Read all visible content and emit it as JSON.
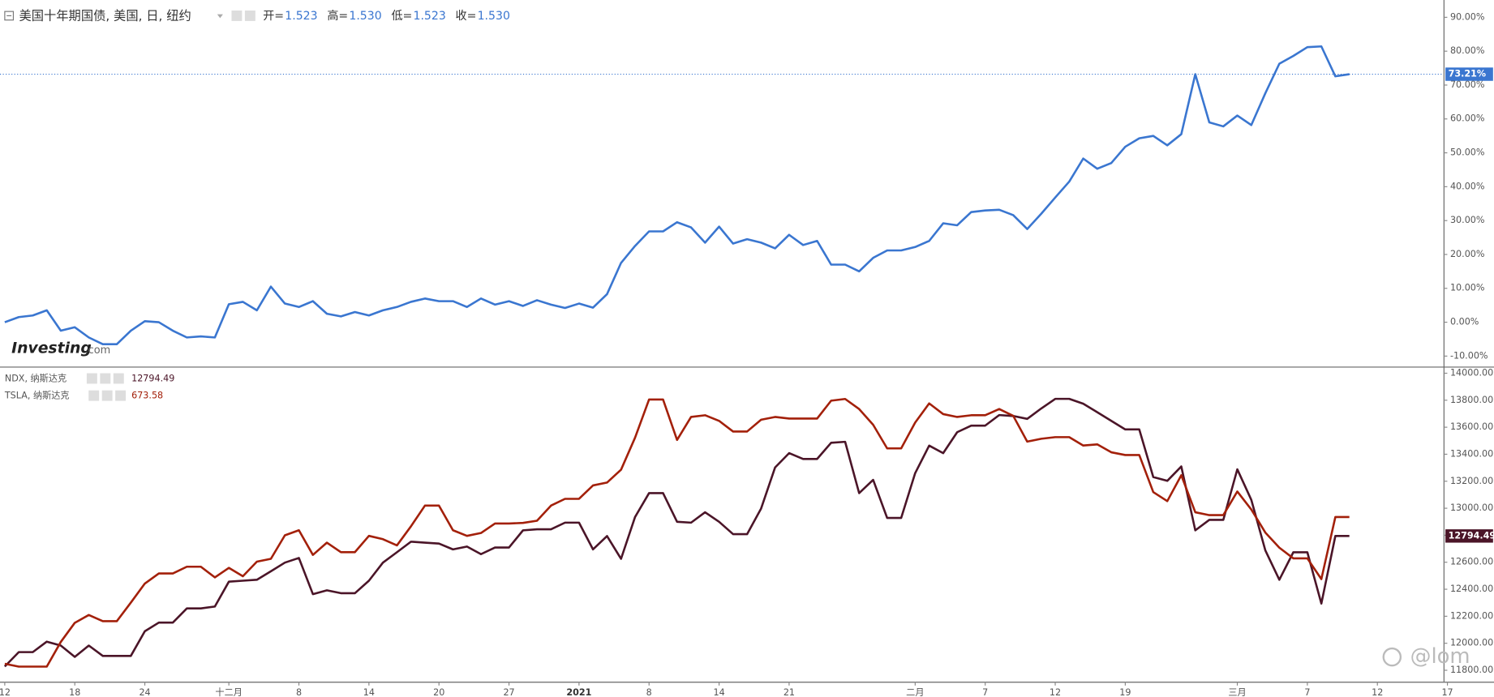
{
  "header": {
    "title": "美国十年期国债, 美国, 日, 纽约",
    "ohlc": [
      {
        "label": "开=",
        "value": "1.523"
      },
      {
        "label": "高=",
        "value": "1.530"
      },
      {
        "label": "低=",
        "value": "1.523"
      },
      {
        "label": "收=",
        "value": "1.530"
      }
    ]
  },
  "watermarks": [
    "Investing",
    ".com",
    "@lom"
  ],
  "chart_data": [
    {
      "type": "line",
      "color": "#3a76d0",
      "values": [
        0,
        1.5,
        2,
        3.5,
        -2.5,
        -1.5,
        -4.5,
        -6.5,
        -6.5,
        -2.5,
        0.3,
        0,
        -2.5,
        -4.5,
        -4.2,
        -4.5,
        5.3,
        6,
        3.5,
        10.5,
        5.5,
        4.5,
        6.2,
        2.5,
        1.7,
        3,
        2,
        3.5,
        4.5,
        6,
        7,
        6.2,
        6.2,
        4.5,
        7,
        5.2,
        6.2,
        4.8,
        6.5,
        5.2,
        4.2,
        5.5,
        4.3,
        8.3,
        17.5,
        22.5,
        26.8,
        26.8,
        29.5,
        28,
        23.5,
        28.2,
        23.2,
        24.5,
        23.5,
        21.8,
        25.8,
        22.8,
        24,
        17,
        17,
        15,
        19,
        21.2,
        21.2,
        22.2,
        24,
        29.2,
        28.6,
        32.5,
        33,
        33.2,
        31.6,
        27.5,
        32,
        36.8,
        41.5,
        48.3,
        45.3,
        47,
        51.8,
        54.3,
        55,
        52.2,
        55.5,
        73.2,
        59,
        57.8,
        61,
        58.2,
        67.6,
        76.3,
        78.6,
        81.2,
        81.4,
        72.6,
        73.21,
        null,
        null,
        null,
        null,
        null,
        null,
        null
      ],
      "current_label": "73.21%",
      "ylim": [
        -13.1,
        95.1
      ],
      "yticks": [
        {
          "value": 90,
          "label": "90.00%"
        },
        {
          "value": 80,
          "label": "80.00%"
        },
        {
          "value": 70,
          "label": "70.00%"
        },
        {
          "value": 60,
          "label": "60.00%"
        },
        {
          "value": 50,
          "label": "50.00%"
        },
        {
          "value": 40,
          "label": "40.00%"
        },
        {
          "value": 30,
          "label": "30.00%"
        },
        {
          "value": 20,
          "label": "20.00%"
        },
        {
          "value": 10,
          "label": "10.00%"
        },
        {
          "value": 0,
          "label": "0.00%"
        },
        {
          "value": -10,
          "label": "-10.00%"
        }
      ]
    },
    {
      "type": "line",
      "categories": [
        "12",
        null,
        null,
        null,
        null,
        "18",
        null,
        null,
        null,
        null,
        "24",
        null,
        null,
        null,
        null,
        null,
        "十二月",
        null,
        null,
        null,
        null,
        "8",
        null,
        null,
        null,
        null,
        "14",
        null,
        null,
        null,
        null,
        "20",
        null,
        null,
        null,
        null,
        "27",
        null,
        null,
        null,
        null,
        "2021",
        null,
        null,
        null,
        null,
        "8",
        null,
        null,
        null,
        null,
        "14",
        null,
        null,
        null,
        null,
        "21",
        null,
        null,
        null,
        null,
        null,
        null,
        null,
        null,
        "二月",
        null,
        null,
        null,
        null,
        "7",
        null,
        null,
        null,
        null,
        "12",
        null,
        null,
        null,
        null,
        "19",
        null,
        null,
        null,
        null,
        null,
        null,
        null,
        "三月",
        null,
        null,
        null,
        null,
        "7",
        null,
        null,
        null,
        null,
        "12",
        null,
        null,
        null,
        null,
        "17"
      ],
      "series": [
        {
          "name": "NDX, 纳斯达克",
          "color": "#4b1528",
          "values": [
            11828,
            11934,
            11934,
            12012,
            11983,
            11899,
            11983,
            11906,
            11906,
            11906,
            12089,
            12153,
            12153,
            12258,
            12258,
            12272,
            12456,
            12463,
            12470,
            12533,
            12597,
            12632,
            12364,
            12392,
            12371,
            12371,
            12463,
            12597,
            12674,
            12752,
            12745,
            12738,
            12695,
            12716,
            12660,
            12709,
            12709,
            12836,
            12844,
            12844,
            12893,
            12893,
            12695,
            12794,
            12625,
            12935,
            13112,
            13112,
            12900,
            12893,
            12970,
            12900,
            12808,
            12808,
            12998,
            13302,
            13408,
            13365,
            13365,
            13485,
            13492,
            13112,
            13210,
            12928,
            12928,
            13260,
            13464,
            13408,
            13563,
            13612,
            13612,
            13690,
            13683,
            13662,
            13739,
            13810,
            13810,
            13774,
            13711,
            13647,
            13584,
            13584,
            13231,
            13203,
            13309,
            12836,
            12914,
            12914,
            13288,
            13062,
            12688,
            12470,
            12674,
            12674,
            12294,
            12794.49,
            12794.49,
            null,
            null,
            null,
            null,
            null,
            null,
            null
          ]
        },
        {
          "name": "TSLA, 纳斯达克",
          "color": "#a3200a",
          "axis": "y2",
          "values": [
            412,
            407,
            407,
            407,
            451,
            485,
            499,
            488,
            488,
            521,
            555,
            573,
            573,
            585,
            585,
            566,
            583,
            568,
            594,
            599,
            641,
            650,
            606,
            628,
            611,
            611,
            640,
            634,
            623,
            657,
            694,
            694,
            650,
            640,
            645,
            662,
            662,
            663,
            667,
            694,
            706,
            706,
            730,
            735,
            758,
            815,
            883,
            883,
            811,
            852,
            855,
            845,
            826,
            826,
            847,
            852,
            849,
            849,
            849,
            881,
            884,
            866,
            838,
            796,
            796,
            842,
            876,
            857,
            852,
            855,
            855,
            866,
            854,
            808,
            813,
            816,
            816,
            801,
            803,
            789,
            784,
            784,
            718,
            702,
            748,
            682,
            677,
            677,
            719,
            687,
            646,
            619,
            600,
            600,
            563,
            673.58,
            673.58,
            null,
            null,
            null,
            null,
            null,
            null,
            null
          ]
        }
      ],
      "ylim": [
        11715,
        14042
      ],
      "y2lim": [
        380,
        940
      ],
      "yticks": [
        {
          "value": 14000,
          "label": "14000.00"
        },
        {
          "value": 13800,
          "label": "13800.00"
        },
        {
          "value": 13600,
          "label": "13600.00"
        },
        {
          "value": 13400,
          "label": "13400.00"
        },
        {
          "value": 13200,
          "label": "13200.00"
        },
        {
          "value": 13000,
          "label": "13000.00"
        },
        {
          "value": 12800,
          "label": "12800.00"
        },
        {
          "value": 12600,
          "label": "12600.00"
        },
        {
          "value": 12400,
          "label": "12400.00"
        },
        {
          "value": 12200,
          "label": "12200.00"
        },
        {
          "value": 12000,
          "label": "12000.00"
        },
        {
          "value": 11800,
          "label": "11800.00"
        }
      ]
    }
  ]
}
